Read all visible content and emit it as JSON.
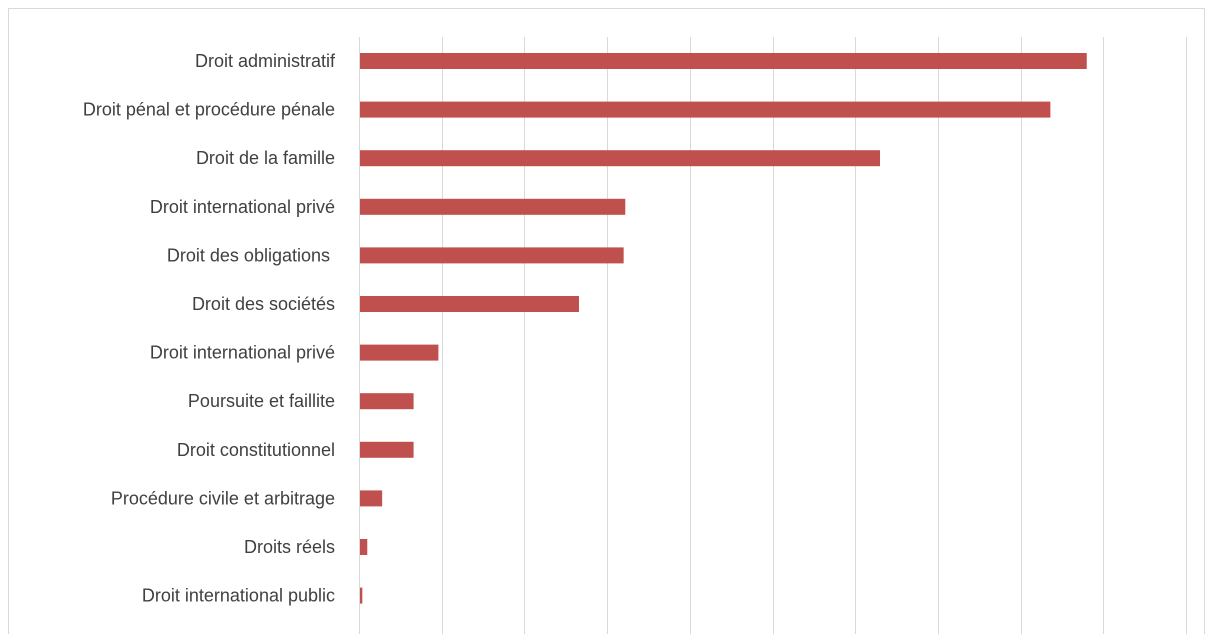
{
  "chart_data": {
    "type": "bar",
    "orientation": "horizontal",
    "categories": [
      "Droit administratif",
      "Droit pénal et procédure pénale",
      "Droit de la famille",
      "Droit international privé",
      "Droit des obligations ",
      "Droit des sociétés",
      "Droit international privé",
      "Poursuite et faillite",
      "Droit constitutionnel",
      "Procédure civile et arbitrage",
      "Droits réels",
      "Droit international public"
    ],
    "values": [
      88,
      83.6,
      63,
      32.2,
      32,
      26.6,
      9.6,
      6.6,
      6.6,
      2.8,
      1,
      0.4
    ],
    "xlim": [
      0,
      100
    ],
    "x_gridline_step": 10,
    "grid": true,
    "tick_labels_shown": false,
    "legend": "none",
    "title": "",
    "xlabel": "",
    "ylabel": "",
    "colors": {
      "bar": "#c0504d",
      "grid": "#d9d9d9",
      "label": "#404040"
    }
  }
}
